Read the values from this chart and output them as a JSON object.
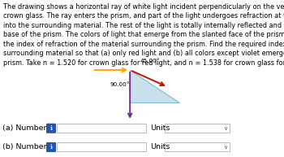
{
  "background_color": "#ffffff",
  "prism_color": "#b8d8e8",
  "prism_edge_color": "#6aaec8",
  "text_block": "The drawing shows a horizontal ray of white light incident perpendicularly on the vertical face of a prism made of\ncrown glass. The ray enters the prism, and part of the light undergoes refraction at the slanted face and emerges\ninto the surrounding material. The rest of the light is totally internally reflected and exits through the horizontal\nbase of the prism. The colors of light that emerge from the slanted face of the prism may be chosen by altering\nthe index of refraction of the material surrounding the prism. Find the required index of refraction of the\nsurrounding material so that (a) only red light and (b) all colors except violet emerge from the slanted face of the\nprism. Take n = 1.520 for crown glass for red light, and n = 1.538 for crown glass for violet light.",
  "angle_45_label": "45.00°",
  "angle_90_label": "90.00°",
  "incident_color": "#FFA500",
  "refracted_color": "#CC1100",
  "reflected_color": "#7B2D8B",
  "label_a": "(a) Number",
  "label_b": "(b) Number",
  "info_color": "#2255aa",
  "font_size_text": 5.85,
  "font_size_angles": 5.2,
  "font_size_labels": 6.8
}
